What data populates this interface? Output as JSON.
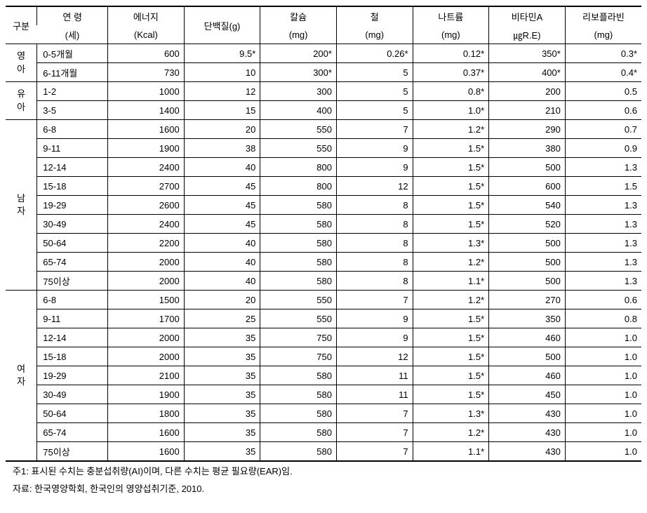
{
  "headers": {
    "group": "구분",
    "age_top": "연  령",
    "age_bottom": "(세)",
    "energy_top": "에너지",
    "energy_bottom": "(Kcal)",
    "protein": "단백질(g)",
    "calcium_top": "칼슘",
    "calcium_bottom": "(mg)",
    "iron_top": "철",
    "iron_bottom": "(mg)",
    "sodium_top": "나트륨",
    "sodium_bottom": "(mg)",
    "vita_top": "비타민A",
    "vita_bottom": "㎍R.E)",
    "ribo_top": "리보플라빈",
    "ribo_bottom": "(mg)"
  },
  "groups": {
    "infant": "영\n아",
    "toddler": "유\n아",
    "male": "남\n자",
    "female": "여\n자"
  },
  "rows": {
    "r0": {
      "age": "0-5개월",
      "energy": "600",
      "protein": "9.5*",
      "calcium": "200*",
      "iron": "0.26*",
      "sodium": "0.12*",
      "vita": "350*",
      "ribo": "0.3*"
    },
    "r1": {
      "age": "6-11개월",
      "energy": "730",
      "protein": "10",
      "calcium": "300*",
      "iron": "5",
      "sodium": "0.37*",
      "vita": "400*",
      "ribo": "0.4*"
    },
    "r2": {
      "age": "1-2",
      "energy": "1000",
      "protein": "12",
      "calcium": "300",
      "iron": "5",
      "sodium": "0.8*",
      "vita": "200",
      "ribo": "0.5"
    },
    "r3": {
      "age": "3-5",
      "energy": "1400",
      "protein": "15",
      "calcium": "400",
      "iron": "5",
      "sodium": "1.0*",
      "vita": "210",
      "ribo": "0.6"
    },
    "r4": {
      "age": "6-8",
      "energy": "1600",
      "protein": "20",
      "calcium": "550",
      "iron": "7",
      "sodium": "1.2*",
      "vita": "290",
      "ribo": "0.7"
    },
    "r5": {
      "age": "9-11",
      "energy": "1900",
      "protein": "38",
      "calcium": "550",
      "iron": "9",
      "sodium": "1.5*",
      "vita": "380",
      "ribo": "0.9"
    },
    "r6": {
      "age": "12-14",
      "energy": "2400",
      "protein": "40",
      "calcium": "800",
      "iron": "9",
      "sodium": "1.5*",
      "vita": "500",
      "ribo": "1.3"
    },
    "r7": {
      "age": "15-18",
      "energy": "2700",
      "protein": "45",
      "calcium": "800",
      "iron": "12",
      "sodium": "1.5*",
      "vita": "600",
      "ribo": "1.5"
    },
    "r8": {
      "age": "19-29",
      "energy": "2600",
      "protein": "45",
      "calcium": "580",
      "iron": "8",
      "sodium": "1.5*",
      "vita": "540",
      "ribo": "1.3"
    },
    "r9": {
      "age": "30-49",
      "energy": "2400",
      "protein": "45",
      "calcium": "580",
      "iron": "8",
      "sodium": "1.5*",
      "vita": "520",
      "ribo": "1.3"
    },
    "r10": {
      "age": "50-64",
      "energy": "2200",
      "protein": "40",
      "calcium": "580",
      "iron": "8",
      "sodium": "1.3*",
      "vita": "500",
      "ribo": "1.3"
    },
    "r11": {
      "age": "65-74",
      "energy": "2000",
      "protein": "40",
      "calcium": "580",
      "iron": "8",
      "sodium": "1.2*",
      "vita": "500",
      "ribo": "1.3"
    },
    "r12": {
      "age": "75이상",
      "energy": "2000",
      "protein": "40",
      "calcium": "580",
      "iron": "8",
      "sodium": "1.1*",
      "vita": "500",
      "ribo": "1.3"
    },
    "r13": {
      "age": "6-8",
      "energy": "1500",
      "protein": "20",
      "calcium": "550",
      "iron": "7",
      "sodium": "1.2*",
      "vita": "270",
      "ribo": "0.6"
    },
    "r14": {
      "age": "9-11",
      "energy": "1700",
      "protein": "25",
      "calcium": "550",
      "iron": "9",
      "sodium": "1.5*",
      "vita": "350",
      "ribo": "0.8"
    },
    "r15": {
      "age": "12-14",
      "energy": "2000",
      "protein": "35",
      "calcium": "750",
      "iron": "9",
      "sodium": "1.5*",
      "vita": "460",
      "ribo": "1.0"
    },
    "r16": {
      "age": "15-18",
      "energy": "2000",
      "protein": "35",
      "calcium": "750",
      "iron": "12",
      "sodium": "1.5*",
      "vita": "500",
      "ribo": "1.0"
    },
    "r17": {
      "age": "19-29",
      "energy": "2100",
      "protein": "35",
      "calcium": "580",
      "iron": "11",
      "sodium": "1.5*",
      "vita": "460",
      "ribo": "1.0"
    },
    "r18": {
      "age": "30-49",
      "energy": "1900",
      "protein": "35",
      "calcium": "580",
      "iron": "11",
      "sodium": "1.5*",
      "vita": "450",
      "ribo": "1.0"
    },
    "r19": {
      "age": "50-64",
      "energy": "1800",
      "protein": "35",
      "calcium": "580",
      "iron": "7",
      "sodium": "1.3*",
      "vita": "430",
      "ribo": "1.0"
    },
    "r20": {
      "age": "65-74",
      "energy": "1600",
      "protein": "35",
      "calcium": "580",
      "iron": "7",
      "sodium": "1.2*",
      "vita": "430",
      "ribo": "1.0"
    },
    "r21": {
      "age": "75이상",
      "energy": "1600",
      "protein": "35",
      "calcium": "580",
      "iron": "7",
      "sodium": "1.1*",
      "vita": "430",
      "ribo": "1.0"
    }
  },
  "footnotes": {
    "note1": "주1: 표시된 수치는 충분섭취량(AI)이며, 다른 수치는 평균 필요량(EAR)임.",
    "source": "자료: 한국영양학회, 한국인의 영양섭취기준, 2010."
  }
}
